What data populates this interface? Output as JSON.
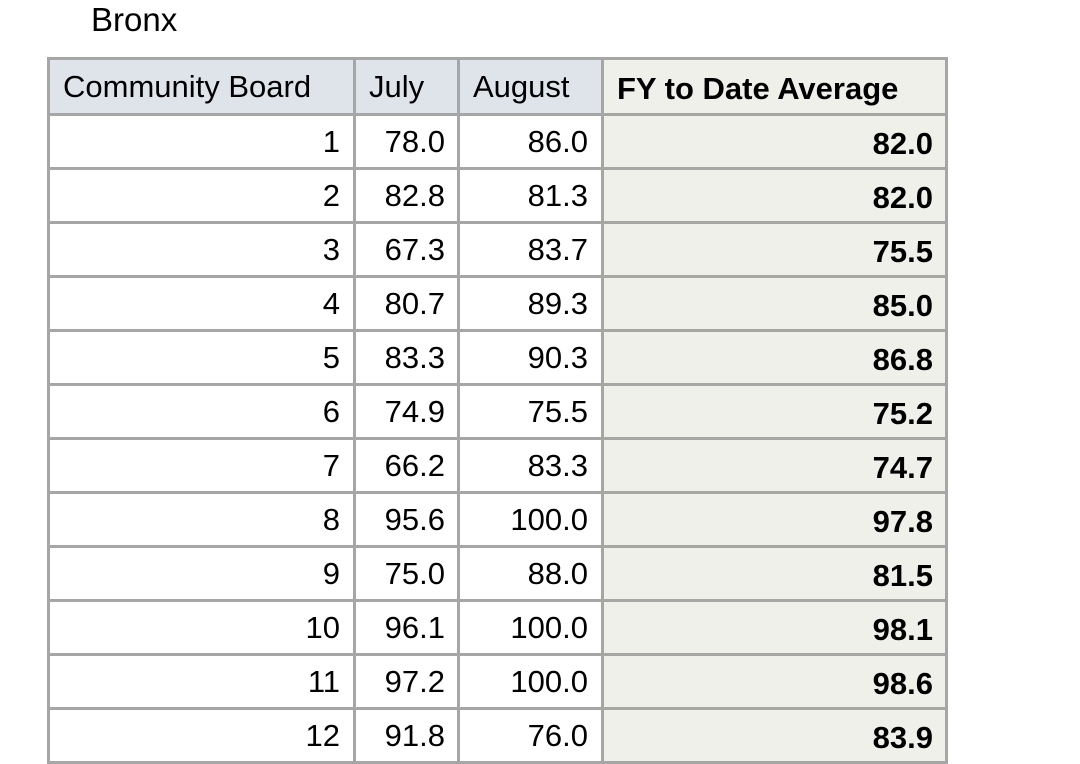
{
  "caption": "Bronx",
  "table": {
    "headers": [
      "Community Board",
      "July",
      "August",
      "FY to Date Average"
    ],
    "rows": [
      {
        "board": "1",
        "july": "78.0",
        "august": "86.0",
        "average": "82.0"
      },
      {
        "board": "2",
        "july": "82.8",
        "august": "81.3",
        "average": "82.0"
      },
      {
        "board": "3",
        "july": "67.3",
        "august": "83.7",
        "average": "75.5"
      },
      {
        "board": "4",
        "july": "80.7",
        "august": "89.3",
        "average": "85.0"
      },
      {
        "board": "5",
        "july": "83.3",
        "august": "90.3",
        "average": "86.8"
      },
      {
        "board": "6",
        "july": "74.9",
        "august": "75.5",
        "average": "75.2"
      },
      {
        "board": "7",
        "july": "66.2",
        "august": "83.3",
        "average": "74.7"
      },
      {
        "board": "8",
        "july": "95.6",
        "august": "100.0",
        "average": "97.8"
      },
      {
        "board": "9",
        "july": "75.0",
        "august": "88.0",
        "average": "81.5"
      },
      {
        "board": "10",
        "july": "96.1",
        "august": "100.0",
        "average": "98.1"
      },
      {
        "board": "11",
        "july": "97.2",
        "august": "100.0",
        "average": "98.6"
      },
      {
        "board": "12",
        "july": "91.8",
        "august": "76.0",
        "average": "83.9"
      }
    ]
  },
  "colors": {
    "header_bg": "#dfe3ea",
    "average_bg": "#f0f0ea",
    "border": "#a6a6a6"
  }
}
